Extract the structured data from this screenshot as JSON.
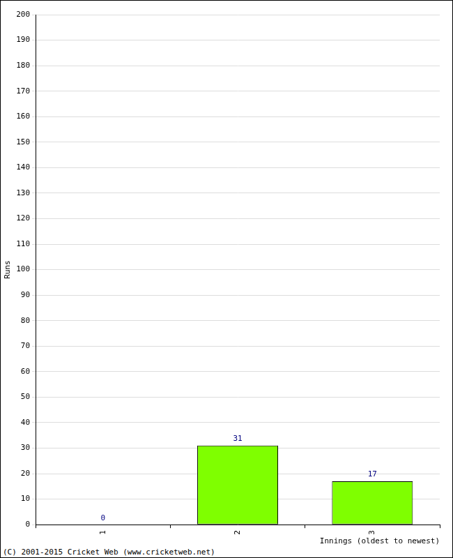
{
  "chart_data": {
    "type": "bar",
    "categories": [
      "1",
      "2",
      "3"
    ],
    "values": [
      0,
      31,
      17
    ],
    "color": "#7fff00",
    "x_label": "Innings (oldest to newest)",
    "y_label": "Runs",
    "ylim": [
      0,
      200
    ],
    "yticks": [
      0,
      10,
      20,
      30,
      40,
      50,
      60,
      70,
      80,
      90,
      100,
      110,
      120,
      130,
      140,
      150,
      160,
      170,
      180,
      190,
      200
    ],
    "grid": true,
    "data_labels": true,
    "annotations": [
      "(C) 2001-2015 Cricket Web (www.cricketweb.net)"
    ]
  }
}
